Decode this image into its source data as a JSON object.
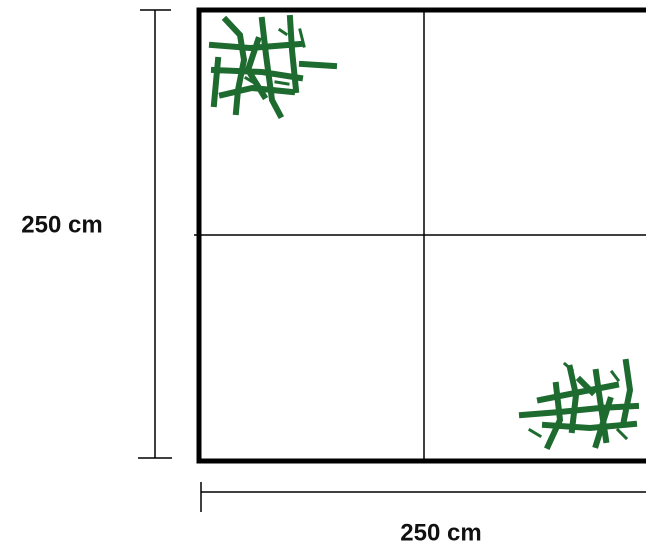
{
  "dimensions": {
    "height": "250 cm",
    "width": "250 cm"
  }
}
